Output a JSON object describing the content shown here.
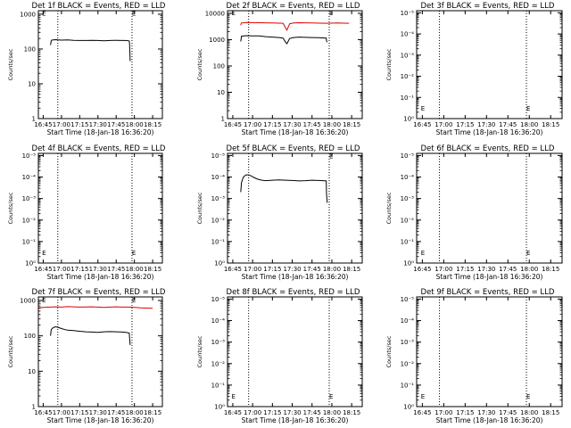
{
  "chart_data": [
    {
      "type": "line",
      "title": "Det 1f BLACK = Events, RED = LLD",
      "xlabel": "Start Time (18-Jan-18 16:36:20)",
      "ylabel": "Counts/sec",
      "x_tick_labels": [
        "16:45",
        "17:00",
        "17:15",
        "17:30",
        "17:45",
        "18:00",
        "18:15"
      ],
      "x_tick_minutes": [
        0,
        15,
        30,
        45,
        60,
        75,
        90
      ],
      "xlim_minutes": [
        -4,
        98
      ],
      "dotted_verticals_minutes": [
        12,
        73
      ],
      "yscale": "log",
      "y_tick_labels": [
        "1",
        "10",
        "100",
        "1000"
      ],
      "y_tick_exponents": [
        0,
        1,
        2,
        3
      ],
      "ylim_exponents": [
        0,
        3.1
      ],
      "markers": [
        {
          "text": "E",
          "x": -1,
          "y_exp": 3.03
        },
        {
          "text": "E",
          "x": 73,
          "y_exp": 3.03
        }
      ],
      "series": [
        {
          "color": "#000000",
          "x": [
            6,
            6.6,
            7,
            10,
            15,
            20,
            25,
            30,
            35,
            40,
            45,
            50,
            55,
            60,
            65,
            68,
            70.8,
            71,
            71.5
          ],
          "y": [
            130,
            170,
            180,
            185,
            180,
            182,
            178,
            175,
            176,
            178,
            175,
            172,
            176,
            178,
            175,
            176,
            170,
            140,
            45
          ]
        }
      ]
    },
    {
      "type": "line",
      "title": "Det 2f BLACK = Events, RED = LLD",
      "xlabel": "Start Time (18-Jan-18 16:36:20)",
      "ylabel": "Counts/sec",
      "x_tick_labels": [
        "16:45",
        "17:00",
        "17:15",
        "17:30",
        "17:45",
        "18:00",
        "18:15"
      ],
      "x_tick_minutes": [
        0,
        15,
        30,
        45,
        60,
        75,
        90
      ],
      "xlim_minutes": [
        -4,
        98
      ],
      "dotted_verticals_minutes": [
        12,
        73
      ],
      "yscale": "log",
      "y_tick_labels": [
        "1",
        "10",
        "100",
        "1000",
        "10000"
      ],
      "y_tick_exponents": [
        0,
        1,
        2,
        3,
        4
      ],
      "ylim_exponents": [
        0,
        4.1
      ],
      "markers": [
        {
          "text": "E",
          "x": -1,
          "y_exp": 4.03
        },
        {
          "text": "E",
          "x": 73,
          "y_exp": 4.03
        }
      ],
      "series": [
        {
          "color": "#dd0000",
          "x": [
            6,
            6.5,
            10,
            20,
            30,
            38,
            40,
            41,
            43,
            46,
            50,
            60,
            70,
            80,
            88
          ],
          "y": [
            3500,
            4300,
            4500,
            4400,
            4300,
            4200,
            2800,
            2300,
            4000,
            4300,
            4400,
            4300,
            4200,
            4300,
            4200
          ]
        },
        {
          "color": "#000000",
          "x": [
            6,
            6.6,
            10,
            15,
            20,
            25,
            30,
            35,
            38,
            40,
            41,
            43,
            46,
            50,
            55,
            60,
            65,
            70.8,
            71,
            71.5
          ],
          "y": [
            850,
            1350,
            1420,
            1400,
            1380,
            1300,
            1250,
            1200,
            1150,
            800,
            700,
            1100,
            1200,
            1250,
            1220,
            1200,
            1180,
            1150,
            900,
            800
          ]
        }
      ]
    },
    {
      "type": "line",
      "title": "Det 3f BLACK = Events, RED = LLD",
      "xlabel": "Start Time (18-Jan-18 16:36:20)",
      "ylabel": "Counts/sec",
      "x_tick_labels": [
        "16:45",
        "17:00",
        "17:15",
        "17:30",
        "17:45",
        "18:00",
        "18:15"
      ],
      "x_tick_minutes": [
        0,
        15,
        30,
        45,
        60,
        75,
        90
      ],
      "xlim_minutes": [
        -4,
        98
      ],
      "dotted_verticals_minutes": [
        12,
        73
      ],
      "yscale": "log",
      "y_tick_labels": [
        "10⁰",
        "10⁻¹",
        "10⁻²",
        "10⁻³",
        "10⁻⁴",
        "10⁻⁵"
      ],
      "y_tick_exponents": [
        0,
        1,
        2,
        3,
        4,
        5
      ],
      "ylim_exponents": [
        0,
        5.1
      ],
      "markers": [
        {
          "text": "E",
          "x": -1,
          "y_exp": 0.5
        },
        {
          "text": "E",
          "x": 73,
          "y_exp": 0.5
        }
      ],
      "series": []
    },
    {
      "type": "line",
      "title": "Det 4f BLACK = Events, RED = LLD",
      "xlabel": "Start Time (18-Jan-18 16:36:20)",
      "ylabel": "Counts/sec",
      "x_tick_labels": [
        "16:45",
        "17:00",
        "17:15",
        "17:30",
        "17:45",
        "18:00",
        "18:15"
      ],
      "x_tick_minutes": [
        0,
        15,
        30,
        45,
        60,
        75,
        90
      ],
      "xlim_minutes": [
        -4,
        98
      ],
      "dotted_verticals_minutes": [
        12,
        73
      ],
      "yscale": "log",
      "y_tick_labels": [
        "10⁰",
        "10⁻¹",
        "10⁻²",
        "10⁻³",
        "10⁻⁴",
        "10⁻⁵"
      ],
      "y_tick_exponents": [
        0,
        1,
        2,
        3,
        4,
        5
      ],
      "ylim_exponents": [
        0,
        5.1
      ],
      "markers": [
        {
          "text": "E",
          "x": -1,
          "y_exp": 0.5
        },
        {
          "text": "E",
          "x": 73,
          "y_exp": 0.5
        }
      ],
      "series": []
    },
    {
      "type": "line",
      "title": "Det 5f BLACK = Events, RED = LLD",
      "xlabel": "Start Time (18-Jan-18 16:36:20)",
      "ylabel": "Counts/sec",
      "x_tick_labels": [
        "16:45",
        "17:00",
        "17:15",
        "17:30",
        "17:45",
        "18:00",
        "18:15"
      ],
      "x_tick_minutes": [
        0,
        15,
        30,
        45,
        60,
        75,
        90
      ],
      "xlim_minutes": [
        -4,
        98
      ],
      "dotted_verticals_minutes": [
        12,
        73
      ],
      "yscale": "log",
      "y_tick_labels": [
        "10⁰",
        "10⁻¹",
        "10⁻²",
        "10⁻³",
        "10⁻⁴",
        "10⁻⁵"
      ],
      "y_tick_exponents": [
        0,
        1,
        2,
        3,
        4,
        5
      ],
      "ylim_exponents": [
        0,
        5.1
      ],
      "markers": [
        {
          "text": "E",
          "x": 73,
          "y_exp": 5.0
        }
      ],
      "series": [
        {
          "color": "#000000",
          "x": [
            6,
            6.6,
            8,
            10,
            12,
            14,
            16,
            18,
            20,
            22,
            25,
            30,
            35,
            40,
            45,
            50,
            55,
            60,
            65,
            68,
            70.8,
            71,
            71.5
          ],
          "y_exp": [
            3.3,
            3.75,
            4.0,
            4.1,
            4.1,
            4.05,
            3.98,
            3.92,
            3.88,
            3.85,
            3.83,
            3.85,
            3.87,
            3.85,
            3.84,
            3.82,
            3.83,
            3.85,
            3.84,
            3.83,
            3.82,
            3.2,
            2.8
          ]
        }
      ]
    },
    {
      "type": "line",
      "title": "Det 6f BLACK = Events, RED = LLD",
      "xlabel": "Start Time (18-Jan-18 16:36:20)",
      "ylabel": "Counts/sec",
      "x_tick_labels": [
        "16:45",
        "17:00",
        "17:15",
        "17:30",
        "17:45",
        "18:00",
        "18:15"
      ],
      "x_tick_minutes": [
        0,
        15,
        30,
        45,
        60,
        75,
        90
      ],
      "xlim_minutes": [
        -4,
        98
      ],
      "dotted_verticals_minutes": [
        12,
        73
      ],
      "yscale": "log",
      "y_tick_labels": [
        "10⁰",
        "10⁻¹",
        "10⁻²",
        "10⁻³",
        "10⁻⁴",
        "10⁻⁵"
      ],
      "y_tick_exponents": [
        0,
        1,
        2,
        3,
        4,
        5
      ],
      "ylim_exponents": [
        0,
        5.1
      ],
      "markers": [
        {
          "text": "E",
          "x": -1,
          "y_exp": 0.5
        },
        {
          "text": "E",
          "x": 73,
          "y_exp": 0.5
        }
      ],
      "series": []
    },
    {
      "type": "line",
      "title": "Det 7f BLACK = Events, RED = LLD",
      "xlabel": "Start Time (18-Jan-18 16:36:20)",
      "ylabel": "Counts/sec",
      "x_tick_labels": [
        "16:45",
        "17:00",
        "17:15",
        "17:30",
        "17:45",
        "18:00",
        "18:15"
      ],
      "x_tick_minutes": [
        0,
        15,
        30,
        45,
        60,
        75,
        90
      ],
      "xlim_minutes": [
        -4,
        98
      ],
      "dotted_verticals_minutes": [
        12,
        73
      ],
      "yscale": "log",
      "y_tick_labels": [
        "1",
        "10",
        "100",
        "1000"
      ],
      "y_tick_exponents": [
        0,
        1,
        2,
        3
      ],
      "ylim_exponents": [
        0,
        3.1
      ],
      "markers": [
        {
          "text": "E",
          "x": -1,
          "y_exp": 3.03
        },
        {
          "text": "E",
          "x": 73,
          "y_exp": 3.03
        }
      ],
      "series": [
        {
          "color": "#dd0000",
          "x": [
            -4,
            0,
            5,
            10,
            15,
            20,
            25,
            30,
            35,
            40,
            45,
            50,
            55,
            60,
            65,
            70,
            75,
            80,
            85,
            90
          ],
          "y": [
            620,
            640,
            650,
            660,
            650,
            670,
            660,
            650,
            655,
            660,
            650,
            640,
            650,
            660,
            650,
            650,
            640,
            620,
            610,
            600
          ]
        },
        {
          "color": "#000000",
          "x": [
            6,
            6.6,
            8,
            10,
            12,
            15,
            18,
            20,
            25,
            30,
            35,
            40,
            45,
            50,
            55,
            60,
            65,
            68,
            70.8,
            71,
            71.5
          ],
          "y": [
            100,
            150,
            170,
            180,
            175,
            160,
            150,
            145,
            140,
            135,
            130,
            128,
            125,
            130,
            132,
            130,
            128,
            125,
            120,
            90,
            55
          ]
        }
      ]
    },
    {
      "type": "line",
      "title": "Det 8f BLACK = Events, RED = LLD",
      "xlabel": "Start Time (18-Jan-18 16:36:20)",
      "ylabel": "Counts/sec",
      "x_tick_labels": [
        "16:45",
        "17:00",
        "17:15",
        "17:30",
        "17:45",
        "18:00",
        "18:15"
      ],
      "x_tick_minutes": [
        0,
        15,
        30,
        45,
        60,
        75,
        90
      ],
      "xlim_minutes": [
        -4,
        98
      ],
      "dotted_verticals_minutes": [
        12,
        73
      ],
      "yscale": "log",
      "y_tick_labels": [
        "10⁰",
        "10⁻¹",
        "10⁻²",
        "10⁻³",
        "10⁻⁴",
        "10⁻⁵"
      ],
      "y_tick_exponents": [
        0,
        1,
        2,
        3,
        4,
        5
      ],
      "ylim_exponents": [
        0,
        5.1
      ],
      "markers": [
        {
          "text": "E",
          "x": -1,
          "y_exp": 0.5
        },
        {
          "text": "E",
          "x": 73,
          "y_exp": 0.5
        }
      ],
      "series": []
    },
    {
      "type": "line",
      "title": "Det 9f BLACK = Events, RED = LLD",
      "xlabel": "Start Time (18-Jan-18 16:36:20)",
      "ylabel": "Counts/sec",
      "x_tick_labels": [
        "16:45",
        "17:00",
        "17:15",
        "17:30",
        "17:45",
        "18:00",
        "18:15"
      ],
      "x_tick_minutes": [
        0,
        15,
        30,
        45,
        60,
        75,
        90
      ],
      "xlim_minutes": [
        -4,
        98
      ],
      "dotted_verticals_minutes": [
        12,
        73
      ],
      "yscale": "log",
      "y_tick_labels": [
        "10⁰",
        "10⁻¹",
        "10⁻²",
        "10⁻³",
        "10⁻⁴",
        "10⁻⁵"
      ],
      "y_tick_exponents": [
        0,
        1,
        2,
        3,
        4,
        5
      ],
      "ylim_exponents": [
        0,
        5.1
      ],
      "markers": [
        {
          "text": "E",
          "x": -1,
          "y_exp": 0.5
        },
        {
          "text": "E",
          "x": 73,
          "y_exp": 0.5
        }
      ],
      "series": []
    }
  ]
}
